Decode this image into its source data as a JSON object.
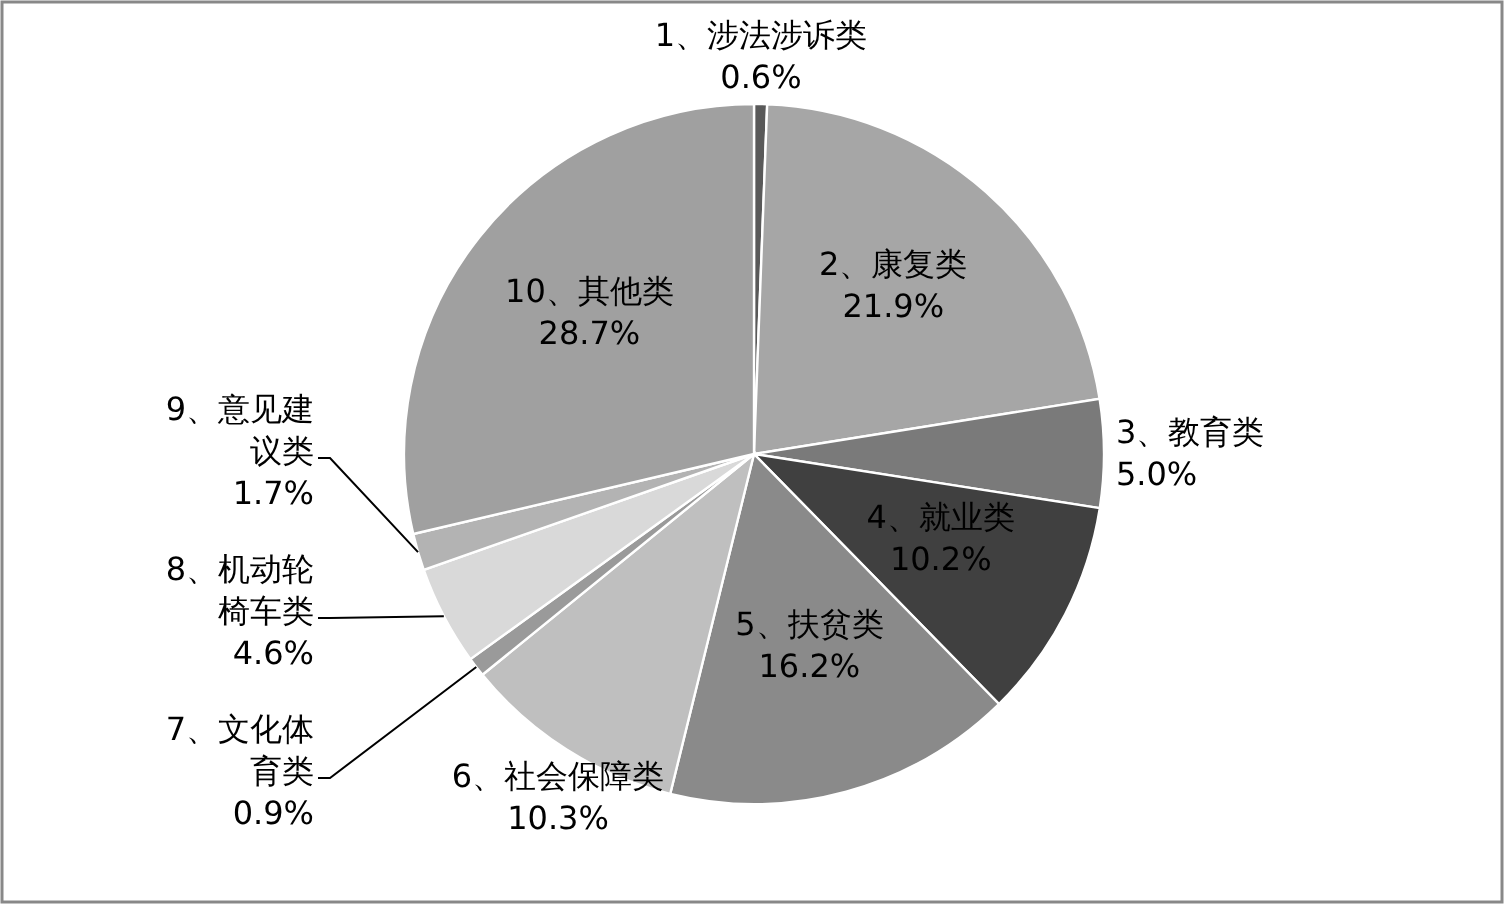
{
  "chart_data": {
    "type": "pie",
    "categories": [
      "1、涉法涉诉类",
      "2、康复类",
      "3、教育类",
      "4、就业类",
      "5、扶贫类",
      "6、社会保障类",
      "7、文化体育类",
      "8、机动轮椅车类",
      "9、意见建议类",
      "10、其他类"
    ],
    "values": [
      0.6,
      21.9,
      5.0,
      10.2,
      16.2,
      10.3,
      0.9,
      4.6,
      1.7,
      28.7
    ],
    "value_labels": [
      "0.6%",
      "21.9%",
      "5.0%",
      "10.2%",
      "16.2%",
      "10.3%",
      "0.9%",
      "4.6%",
      "1.7%",
      "28.7%"
    ],
    "colors": [
      "#595959",
      "#a6a6a6",
      "#7a7a7a",
      "#404040",
      "#8a8a8a",
      "#bfbfbf",
      "#9a9a9a",
      "#d9d9d9",
      "#b3b3b3",
      "#a0a0a0"
    ],
    "legend": false
  }
}
